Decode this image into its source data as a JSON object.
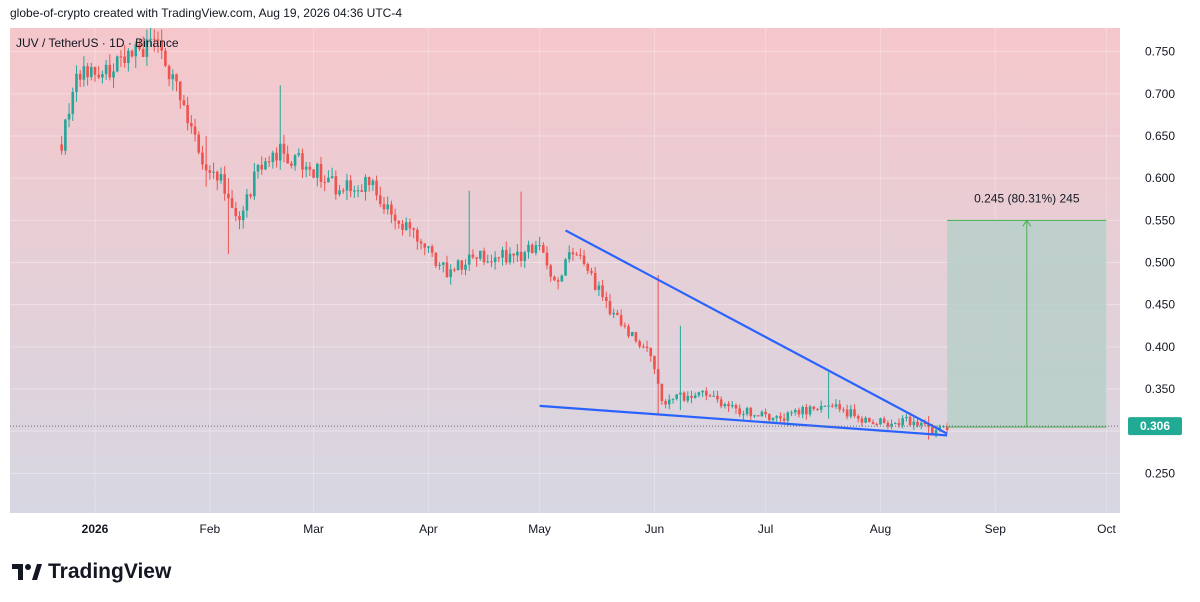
{
  "header": {
    "attribution": "globe-of-crypto created with TradingView.com, Aug 19, 2026 04:36 UTC-4"
  },
  "footer": {
    "brand": "TradingView"
  },
  "colors": {
    "up": "#26a69a",
    "down": "#ef5350",
    "trendline": "#2962ff",
    "bg_top": "#f5c7cb",
    "bg_bottom": "#d6d7e2",
    "target_box": "#b7cfc9",
    "price_badge": "#22ab94"
  },
  "chart_data": {
    "type": "candlestick",
    "title": "JUV / TetherUS · 1D · Binance",
    "symbol": "JUV / TetherUS",
    "interval": "1D",
    "exchange": "Binance",
    "y_axis_ticks": [
      "0.750",
      "0.700",
      "0.650",
      "0.600",
      "0.550",
      "0.500",
      "0.450",
      "0.400",
      "0.350",
      "0.300",
      "0.250"
    ],
    "x_axis_labels": [
      "2026",
      "Feb",
      "Mar",
      "Apr",
      "May",
      "Jun",
      "Jul",
      "Aug",
      "Sep",
      "Oct"
    ],
    "ylim": [
      0.203,
      0.778
    ],
    "last_price": "0.306",
    "price_path": [
      [
        "2025-12-23",
        0.64
      ],
      [
        "2025-12-27",
        0.73
      ],
      [
        "2026-01-02",
        0.72
      ],
      [
        "2026-01-10",
        0.745
      ],
      [
        "2026-01-18",
        0.76
      ],
      [
        "2026-01-24",
        0.7
      ],
      [
        "2026-01-30",
        0.62
      ],
      [
        "2026-02-04",
        0.6
      ],
      [
        "2026-02-09",
        0.545
      ],
      [
        "2026-02-14",
        0.615
      ],
      [
        "2026-02-20",
        0.63
      ],
      [
        "2026-02-28",
        0.615
      ],
      [
        "2026-03-08",
        0.585
      ],
      [
        "2026-03-16",
        0.595
      ],
      [
        "2026-03-22",
        0.56
      ],
      [
        "2026-03-29",
        0.525
      ],
      [
        "2026-04-06",
        0.49
      ],
      [
        "2026-04-15",
        0.51
      ],
      [
        "2026-04-25",
        0.505
      ],
      [
        "2026-05-01",
        0.52
      ],
      [
        "2026-05-05",
        0.48
      ],
      [
        "2026-05-11",
        0.515
      ],
      [
        "2026-05-17",
        0.465
      ],
      [
        "2026-05-25",
        0.415
      ],
      [
        "2026-05-31",
        0.395
      ],
      [
        "2026-06-03",
        0.335
      ],
      [
        "2026-06-12",
        0.345
      ],
      [
        "2026-06-18",
        0.335
      ],
      [
        "2026-06-24",
        0.325
      ],
      [
        "2026-07-05",
        0.315
      ],
      [
        "2026-07-11",
        0.325
      ],
      [
        "2026-07-19",
        0.33
      ],
      [
        "2026-07-27",
        0.315
      ],
      [
        "2026-08-04",
        0.31
      ],
      [
        "2026-08-10",
        0.313
      ],
      [
        "2026-08-15",
        0.3
      ],
      [
        "2026-08-19",
        0.306
      ]
    ],
    "wicks": [
      {
        "date": "2026-01-31",
        "high": 0.65,
        "low": 0.59
      },
      {
        "date": "2026-02-06",
        "high": 0.6,
        "low": 0.51
      },
      {
        "date": "2026-02-20",
        "high": 0.71,
        "low": 0.61
      },
      {
        "date": "2026-04-12",
        "high": 0.585,
        "low": 0.49
      },
      {
        "date": "2026-04-26",
        "high": 0.584,
        "low": 0.5
      },
      {
        "date": "2026-06-02",
        "high": 0.485,
        "low": 0.32
      },
      {
        "date": "2026-06-08",
        "high": 0.425,
        "low": 0.325
      },
      {
        "date": "2026-07-18",
        "high": 0.37,
        "low": 0.315
      },
      {
        "date": "2026-08-14",
        "high": 0.318,
        "low": 0.29
      }
    ],
    "trendlines": [
      {
        "name": "upper",
        "from": {
          "date": "2026-05-08",
          "value": 0.538
        },
        "to": {
          "date": "2026-08-19",
          "value": 0.297
        }
      },
      {
        "name": "lower",
        "from": {
          "date": "2026-05-01",
          "value": 0.33
        },
        "to": {
          "date": "2026-08-19",
          "value": 0.295
        }
      }
    ],
    "target_projection": {
      "label": "0.245 (80.31%) 245",
      "start_date": "2026-08-19",
      "end_date": "2026-10-01",
      "base": 0.305,
      "target": 0.55
    }
  }
}
